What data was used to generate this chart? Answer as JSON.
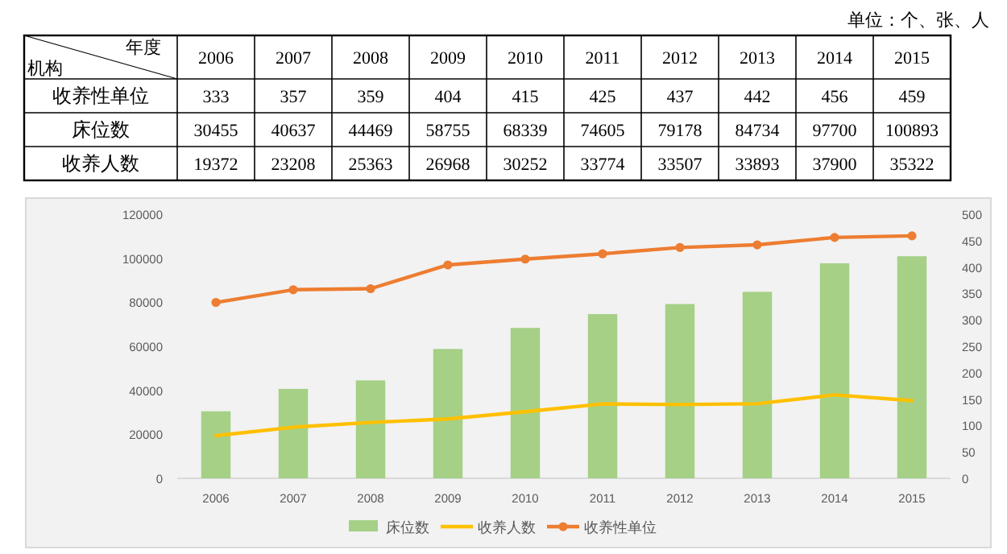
{
  "chart_data": {
    "type": "bar",
    "annotations": [
      "单位：个、张、人",
      "年度",
      "机构"
    ],
    "categories": [
      "2006",
      "2007",
      "2008",
      "2009",
      "2010",
      "2011",
      "2012",
      "2013",
      "2014",
      "2015"
    ],
    "series": [
      {
        "name": "收养性单位",
        "type": "line",
        "axis": "y2",
        "color": "#ed7d31",
        "marker": "circle",
        "values": [
          333,
          357,
          359,
          404,
          415,
          425,
          437,
          442,
          456,
          459
        ]
      },
      {
        "name": "床位数",
        "color": "#a5d086",
        "values": [
          30455,
          40637,
          44469,
          58755,
          68339,
          74605,
          79178,
          84734,
          97700,
          100893
        ]
      },
      {
        "name": "收养人数",
        "type": "line",
        "color": "#ffc000",
        "marker": "none",
        "values": [
          19372,
          23208,
          25363,
          26968,
          30252,
          33774,
          33507,
          33893,
          37900,
          35322
        ]
      }
    ],
    "ylim": [
      0,
      120000
    ],
    "yticks": [
      0,
      20000,
      40000,
      60000,
      80000,
      100000,
      120000
    ],
    "y2lim": [
      0,
      500
    ],
    "y2ticks": [
      0,
      50,
      100,
      150,
      200,
      250,
      300,
      350,
      400,
      450,
      500
    ],
    "legend": "bottom",
    "data_labels": true
  }
}
